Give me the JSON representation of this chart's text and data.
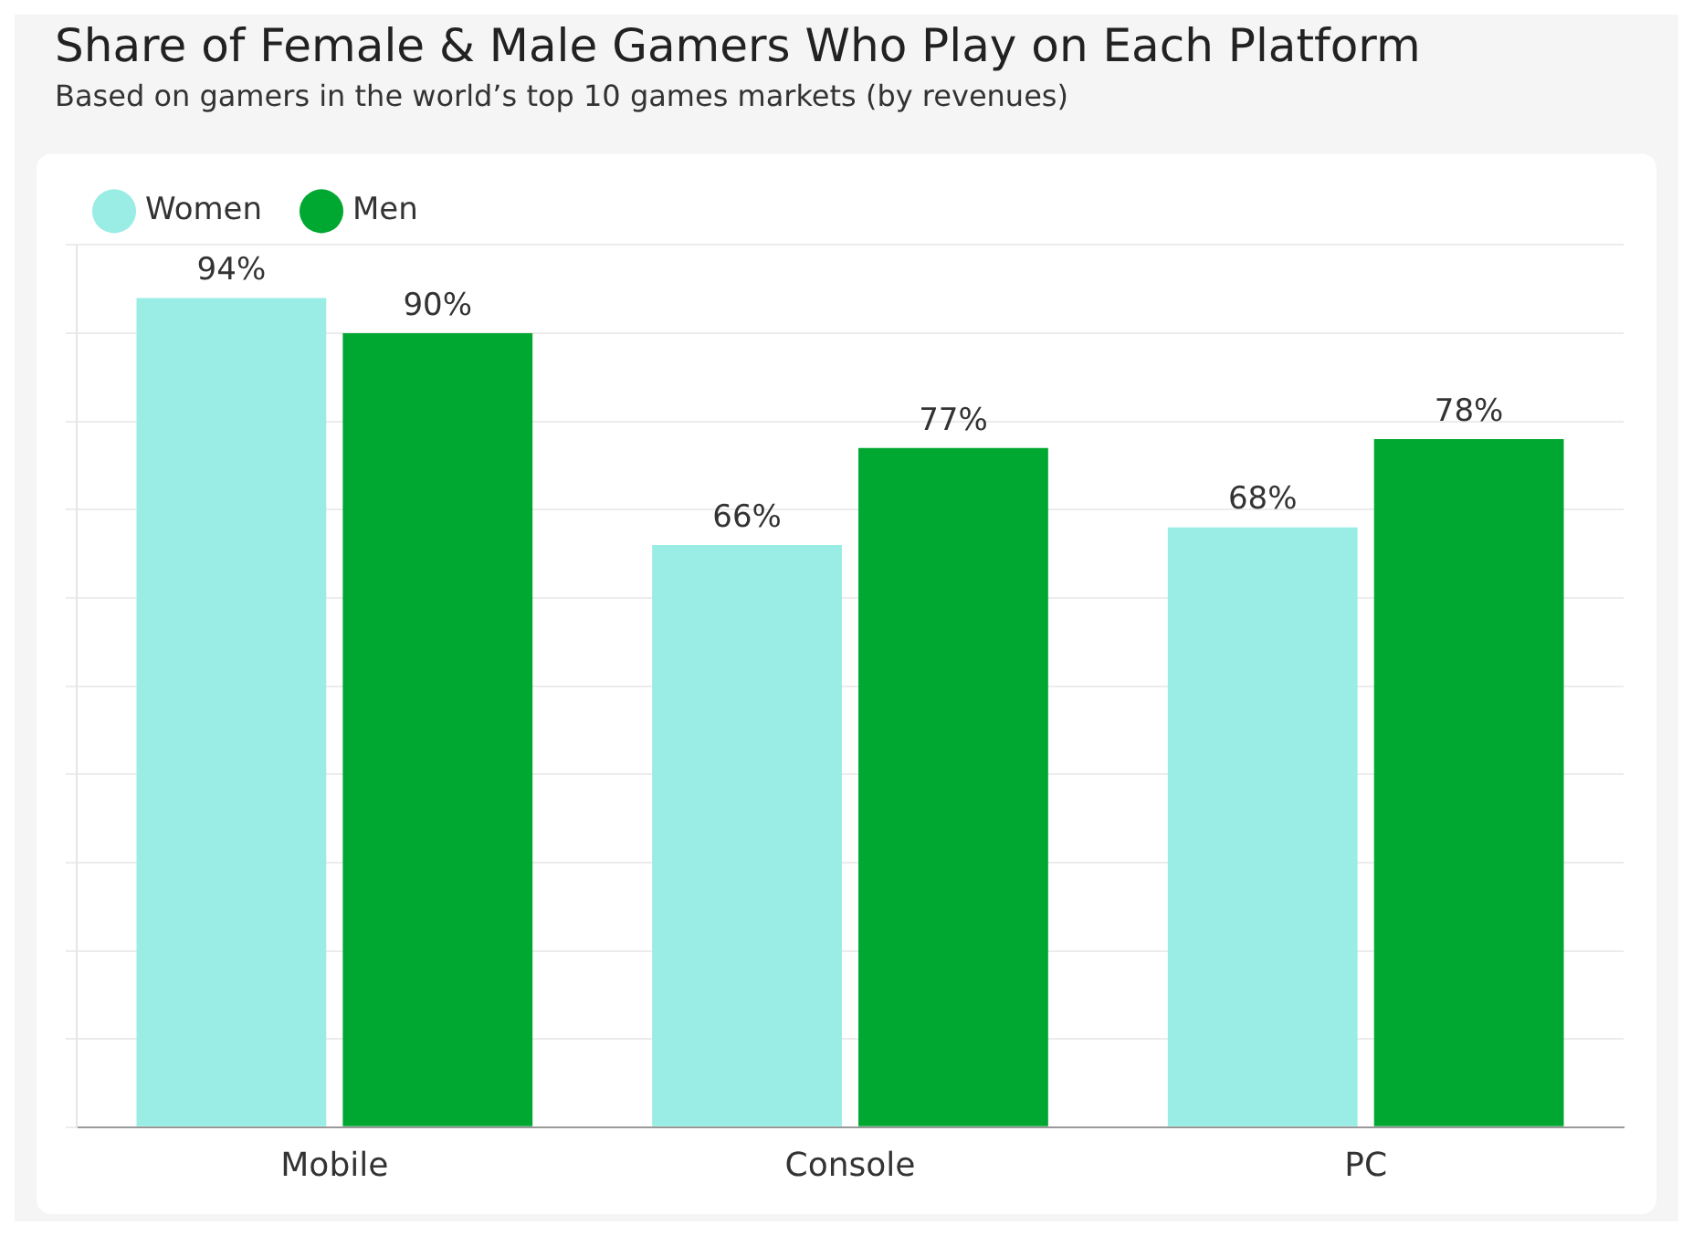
{
  "chart_data": {
    "type": "bar",
    "title": "Share of Female & Male Gamers Who Play on Each Platform",
    "subtitle": "Based on gamers in the world’s top 10 games markets (by revenues)",
    "categories": [
      "Mobile",
      "Console",
      "PC"
    ],
    "series": [
      {
        "name": "Women",
        "color": "#99ede5",
        "values": [
          94,
          66,
          68
        ],
        "value_labels": [
          "94%",
          "66%",
          "68%"
        ]
      },
      {
        "name": "Men",
        "color": "#00a832",
        "values": [
          90,
          77,
          78
        ],
        "value_labels": [
          "90%",
          "77%",
          "78%"
        ]
      }
    ],
    "ylim": [
      0,
      100
    ],
    "yticks": [
      {
        "value": 0,
        "label": null
      },
      {
        "value": 10,
        "label": null
      },
      {
        "value": 20,
        "label": null
      },
      {
        "value": 30,
        "label": null
      },
      {
        "value": 40,
        "label": null
      },
      {
        "value": 50,
        "label": null
      },
      {
        "value": 60,
        "label": null
      },
      {
        "value": 70,
        "label": null
      },
      {
        "value": 80,
        "label": null
      },
      {
        "value": 90,
        "label": null
      },
      {
        "value": 100,
        "label": null
      }
    ],
    "grid": "y",
    "legend": "top left",
    "tick_labels": "x"
  }
}
